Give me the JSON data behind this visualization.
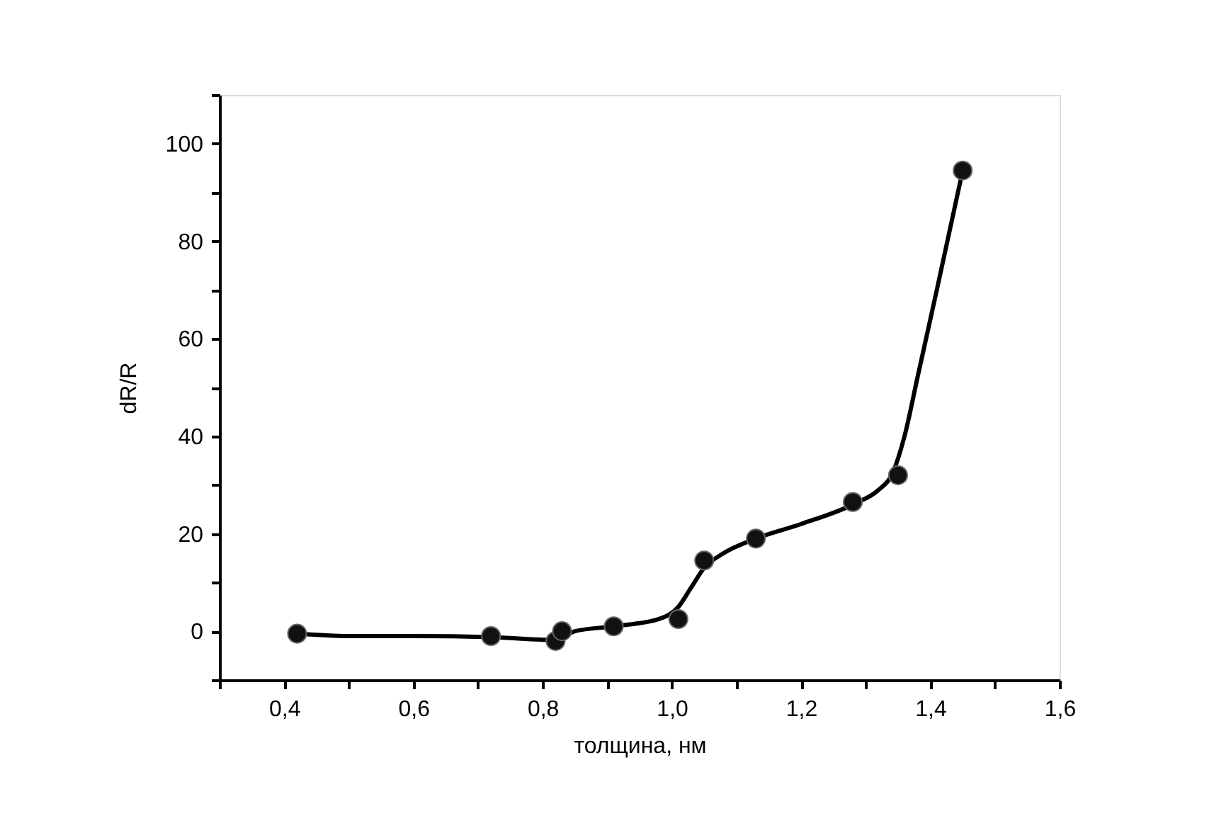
{
  "chart_data": {
    "type": "scatter",
    "xlabel": "толщина, нм",
    "ylabel": "dR/R",
    "xlim": [
      0.3,
      1.6
    ],
    "ylim": [
      -10,
      110
    ],
    "xticks": [
      {
        "value": 0.3,
        "label": null
      },
      {
        "value": 0.4,
        "label": "0,4"
      },
      {
        "value": 0.5,
        "label": null
      },
      {
        "value": 0.6,
        "label": "0,6"
      },
      {
        "value": 0.7,
        "label": null
      },
      {
        "value": 0.8,
        "label": "0,8"
      },
      {
        "value": 0.9,
        "label": null
      },
      {
        "value": 1.0,
        "label": "1,0"
      },
      {
        "value": 1.1,
        "label": null
      },
      {
        "value": 1.2,
        "label": "1,2"
      },
      {
        "value": 1.3,
        "label": null
      },
      {
        "value": 1.4,
        "label": "1,4"
      },
      {
        "value": 1.5,
        "label": null
      },
      {
        "value": 1.6,
        "label": "1,6"
      }
    ],
    "yticks": [
      {
        "value": -10,
        "label": null
      },
      0,
      {
        "value": 10,
        "label": null
      },
      20,
      {
        "value": 30,
        "label": null
      },
      40,
      {
        "value": 50,
        "label": null
      },
      60,
      {
        "value": 70,
        "label": null
      },
      80,
      {
        "value": 90,
        "label": null
      },
      100,
      {
        "value": 110,
        "label": null
      }
    ],
    "grid": false,
    "series": [
      {
        "color": "#111111",
        "marker": "circle",
        "x": [
          0.42,
          0.72,
          0.82,
          0.83,
          0.91,
          1.01,
          1.05,
          1.13,
          1.28,
          1.35,
          1.45
        ],
        "values": [
          -0.5,
          -1,
          -2,
          0,
          1,
          2.5,
          14.5,
          19,
          26.5,
          32,
          94.5
        ]
      },
      {
        "type": "line",
        "color": "#000000",
        "marker": "none",
        "line_style": "solid",
        "x": [
          0.42,
          0.5,
          0.6,
          0.72,
          0.82,
          0.85,
          0.91,
          0.98,
          1.01,
          1.03,
          1.05,
          1.08,
          1.13,
          1.2,
          1.28,
          1.32,
          1.34,
          1.36,
          1.38,
          1.41,
          1.45
        ],
        "values": [
          -0.5,
          -1,
          -1,
          -1.2,
          -1.8,
          0,
          1,
          2.5,
          5,
          9,
          13,
          16,
          19,
          22,
          26,
          29,
          32,
          40,
          52,
          70,
          94.5
        ]
      }
    ]
  }
}
